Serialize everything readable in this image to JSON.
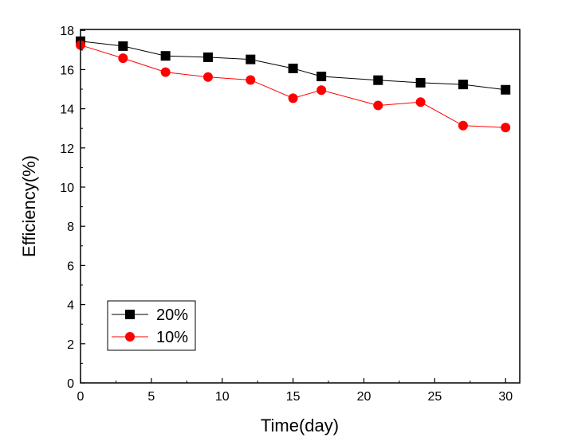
{
  "chart_data": {
    "type": "line",
    "title": "",
    "xlabel": "Time(day)",
    "ylabel": "Efficiency(%)",
    "xlim": [
      0,
      31
    ],
    "ylim": [
      0,
      18.05
    ],
    "xticks": [
      0,
      5,
      10,
      15,
      20,
      25,
      30
    ],
    "yticks": [
      0,
      2,
      4,
      6,
      8,
      10,
      12,
      14,
      16,
      18
    ],
    "grid": false,
    "legend_position": "bottom-left",
    "x": [
      0,
      3,
      6,
      9,
      12,
      15,
      17,
      21,
      24,
      27,
      30
    ],
    "series": [
      {
        "name": "20%",
        "color": "#000000",
        "marker": "square",
        "values": [
          17.45,
          17.2,
          16.7,
          16.63,
          16.52,
          16.06,
          15.65,
          15.46,
          15.33,
          15.24,
          14.97
        ]
      },
      {
        "name": "10%",
        "color": "#ff0000",
        "marker": "circle",
        "values": [
          17.25,
          16.58,
          15.87,
          15.62,
          15.47,
          14.54,
          14.95,
          14.17,
          14.34,
          13.14,
          13.04
        ]
      }
    ]
  }
}
